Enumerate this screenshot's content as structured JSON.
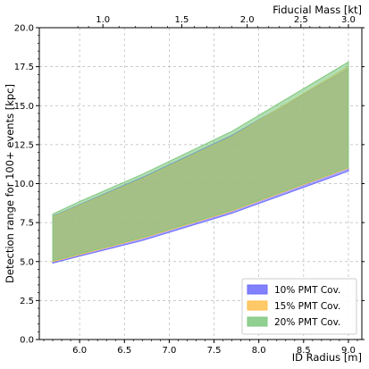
{
  "chart_data": {
    "type": "area",
    "xlabel": "ID Radius [m]",
    "ylabel": "Detection range for 100+ events [kpc]",
    "top_xlabel": "Fiducial Mass [kt]",
    "xlim": [
      5.55,
      9.15
    ],
    "ylim": [
      0.0,
      20.0
    ],
    "x_ticks": [
      6.0,
      6.5,
      7.0,
      7.5,
      8.0,
      8.5,
      9.0
    ],
    "x_tick_labels": [
      "6.0",
      "6.5",
      "7.0",
      "7.5",
      "8.0",
      "8.5",
      "9.0"
    ],
    "y_ticks": [
      0.0,
      2.5,
      5.0,
      7.5,
      10.0,
      12.5,
      15.0,
      17.5,
      20.0
    ],
    "y_tick_labels": [
      "0.0",
      "2.5",
      "5.0",
      "7.5",
      "10.0",
      "12.5",
      "15.0",
      "17.5",
      "20.0"
    ],
    "top_ticks": [
      {
        "label": "1.0",
        "x": 6.26
      },
      {
        "label": "1.5",
        "x": 7.14
      },
      {
        "label": "2.0",
        "x": 7.87
      },
      {
        "label": "2.5",
        "x": 8.47
      },
      {
        "label": "3.0",
        "x": 9.0
      }
    ],
    "top_minor_ticks_x": [
      5.98,
      6.1,
      6.44,
      6.62,
      6.8,
      6.98,
      7.28,
      7.42,
      7.56,
      7.7,
      7.99,
      8.11,
      8.23,
      8.35,
      8.57,
      8.68,
      8.79,
      8.9
    ],
    "grid": true,
    "legend_position": "lower-right",
    "series": [
      {
        "name": "10% PMT Cov.",
        "color": "#6b6bff",
        "x": [
          5.7,
          6.0,
          6.7,
          7.7,
          9.0
        ],
        "lower": [
          4.9,
          5.35,
          6.35,
          8.1,
          10.8
        ],
        "upper": [
          7.9,
          8.65,
          10.4,
          13.1,
          17.35
        ]
      },
      {
        "name": "15% PMT Cov.",
        "color": "#ffc04d",
        "x": [
          5.7,
          6.0,
          6.7,
          7.7,
          9.0
        ],
        "lower": [
          5.0,
          5.45,
          6.5,
          8.25,
          11.0
        ],
        "upper": [
          7.85,
          8.6,
          10.3,
          13.0,
          17.5
        ]
      },
      {
        "name": "20% PMT Cov.",
        "color": "#7fc87f",
        "x": [
          5.7,
          6.0,
          6.7,
          7.7,
          9.0
        ],
        "lower": [
          5.05,
          5.5,
          6.55,
          8.3,
          11.05
        ],
        "upper": [
          8.05,
          8.85,
          10.6,
          13.35,
          17.8
        ]
      }
    ]
  }
}
